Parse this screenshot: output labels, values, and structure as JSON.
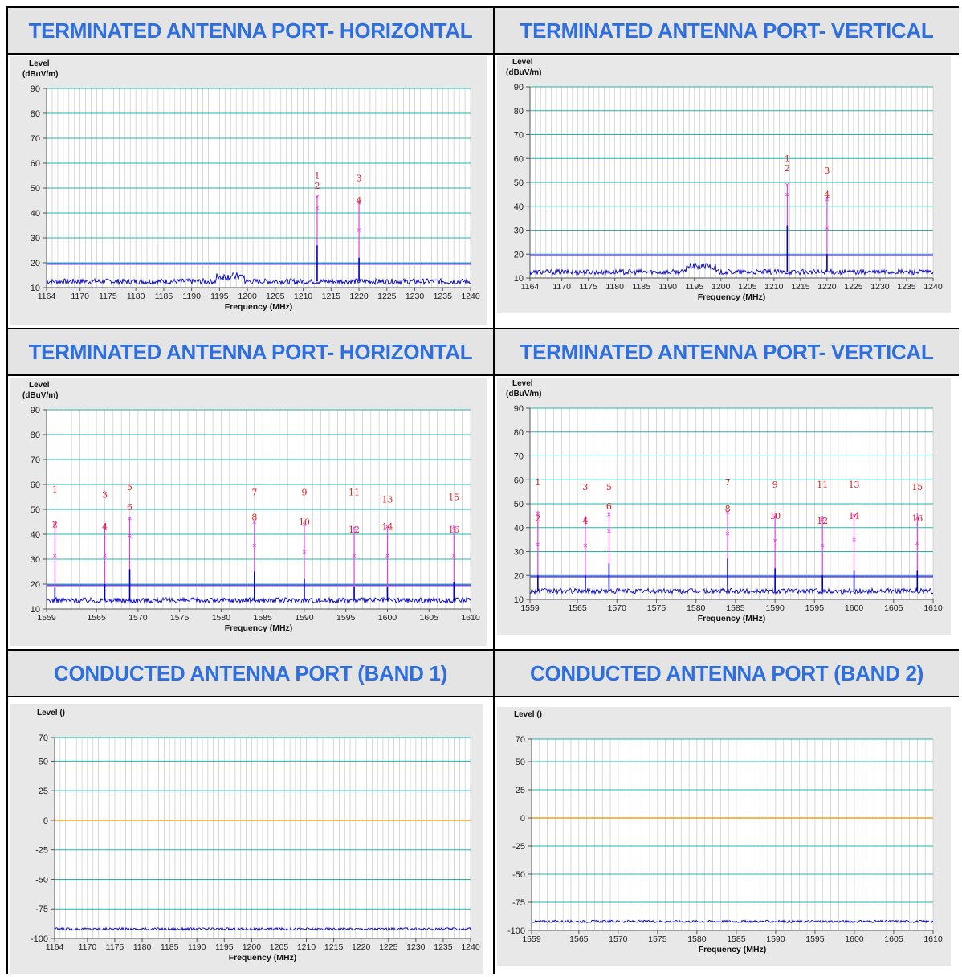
{
  "panels": [
    {
      "heading": "TERMINATED ANTENNA PORT- HORIZONTAL"
    },
    {
      "heading": "TERMINATED ANTENNA PORT- VERTICAL"
    },
    {
      "heading": "TERMINATED ANTENNA PORT- HORIZONTAL"
    },
    {
      "heading": "TERMINATED ANTENNA PORT- VERTICAL"
    },
    {
      "heading": "CONDUCTED ANTENNA PORT (BAND 1)"
    },
    {
      "heading": "CONDUCTED ANTENNA PORT (BAND 2)"
    }
  ],
  "colors": {
    "heading": "#2d6fe0",
    "grid": "#1cb8b0",
    "trace": "#0000c8",
    "limit": "#7a4cf0",
    "marker": "#e040e0",
    "marker_label": "#e02020",
    "zero_line": "#f0a020"
  },
  "chart_data": [
    {
      "type": "line",
      "title": "TERMINATED ANTENNA PORT- HORIZONTAL",
      "ylabel_line1": "Level",
      "ylabel_line2": "(dBuV/m)",
      "xlabel": "Frequency (MHz)",
      "xlim": [
        1164,
        1240
      ],
      "ylim": [
        10,
        90
      ],
      "xticks": [
        1164,
        1170,
        1175,
        1180,
        1185,
        1190,
        1195,
        1200,
        1205,
        1210,
        1215,
        1220,
        1225,
        1230,
        1235,
        1240
      ],
      "yticks": [
        10,
        20,
        30,
        40,
        50,
        60,
        70,
        80,
        90
      ],
      "limit_line": 19.5,
      "noise_floor": 12.5,
      "bumps": [
        {
          "x": [
            1194.5,
            1199.5
          ],
          "level": 14.5
        }
      ],
      "peaks": [
        {
          "x": 1212.5,
          "level": 27
        },
        {
          "x": 1220,
          "level": 22
        }
      ],
      "marker_stems": [
        {
          "x": 1212.5,
          "top": 47
        },
        {
          "x": 1220,
          "top": 45
        }
      ],
      "markers": [
        {
          "id": "1",
          "x": 1212.5,
          "value": 46.5,
          "label_y": 55
        },
        {
          "id": "2",
          "x": 1212.5,
          "value": 42,
          "label_y": 51
        },
        {
          "id": "3",
          "x": 1220,
          "value": 33,
          "label_y": 54
        },
        {
          "id": "4",
          "x": 1220,
          "value": 44.5,
          "label_y": 45
        }
      ]
    },
    {
      "type": "line",
      "title": "TERMINATED ANTENNA PORT- VERTICAL",
      "ylabel_line1": "Level",
      "ylabel_line2": "(dBuV/m)",
      "xlabel": "Frequency (MHz)",
      "xlim": [
        1164,
        1240
      ],
      "ylim": [
        10,
        90
      ],
      "xticks": [
        1164,
        1170,
        1175,
        1180,
        1185,
        1190,
        1195,
        1200,
        1205,
        1210,
        1215,
        1220,
        1225,
        1230,
        1235,
        1240
      ],
      "yticks": [
        10,
        20,
        30,
        40,
        50,
        60,
        70,
        80,
        90
      ],
      "limit_line": 19.5,
      "noise_floor": 12.5,
      "bumps": [
        {
          "x": [
            1193.5,
            1199
          ],
          "level": 15
        }
      ],
      "peaks": [
        {
          "x": 1212.5,
          "level": 32
        },
        {
          "x": 1220,
          "level": 20
        }
      ],
      "marker_stems": [
        {
          "x": 1212.5,
          "top": 49
        },
        {
          "x": 1220,
          "top": 44
        }
      ],
      "markers": [
        {
          "id": "1",
          "x": 1212.5,
          "value": 49,
          "label_y": 60
        },
        {
          "id": "2",
          "x": 1212.5,
          "value": 45,
          "label_y": 56
        },
        {
          "id": "3",
          "x": 1220,
          "value": 31,
          "label_y": 55
        },
        {
          "id": "4",
          "x": 1220,
          "value": 43,
          "label_y": 45
        }
      ]
    },
    {
      "type": "line",
      "title": "TERMINATED ANTENNA PORT- HORIZONTAL",
      "ylabel_line1": "Level",
      "ylabel_line2": "(dBuV/m)",
      "xlabel": "Frequency (MHz)",
      "xlim": [
        1559,
        1610
      ],
      "ylim": [
        10,
        90
      ],
      "xticks": [
        1559,
        1565,
        1570,
        1575,
        1580,
        1585,
        1590,
        1595,
        1600,
        1605,
        1610
      ],
      "yticks": [
        10,
        20,
        30,
        40,
        50,
        60,
        70,
        80,
        90
      ],
      "limit_line": 19.5,
      "noise_floor": 13.5,
      "bumps": [],
      "peaks": [
        {
          "x": 1560,
          "level": 19
        },
        {
          "x": 1566,
          "level": 20
        },
        {
          "x": 1569,
          "level": 26
        },
        {
          "x": 1584,
          "level": 25
        },
        {
          "x": 1590,
          "level": 22
        },
        {
          "x": 1596,
          "level": 19
        },
        {
          "x": 1600,
          "level": 19
        },
        {
          "x": 1608,
          "level": 21
        }
      ],
      "marker_stems": [
        {
          "x": 1560,
          "top": 45
        },
        {
          "x": 1566,
          "top": 44
        },
        {
          "x": 1569,
          "top": 47
        },
        {
          "x": 1584,
          "top": 45
        },
        {
          "x": 1590,
          "top": 44
        },
        {
          "x": 1596,
          "top": 43
        },
        {
          "x": 1600,
          "top": 43
        },
        {
          "x": 1608,
          "top": 43
        }
      ],
      "markers": [
        {
          "id": "1",
          "x": 1560,
          "value": 31.5,
          "label_y": 58
        },
        {
          "id": "2",
          "x": 1560,
          "value": 44.5,
          "label_y": 44
        },
        {
          "id": "3",
          "x": 1566,
          "value": 31.5,
          "label_y": 56
        },
        {
          "id": "4",
          "x": 1566,
          "value": 43,
          "label_y": 43
        },
        {
          "id": "5",
          "x": 1569,
          "value": 39.5,
          "label_y": 59
        },
        {
          "id": "6",
          "x": 1569,
          "value": 46.5,
          "label_y": 51
        },
        {
          "id": "7",
          "x": 1584,
          "value": 35.5,
          "label_y": 57
        },
        {
          "id": "8",
          "x": 1584,
          "value": 45,
          "label_y": 47
        },
        {
          "id": "9",
          "x": 1590,
          "value": 33,
          "label_y": 57
        },
        {
          "id": "10",
          "x": 1590,
          "value": 44,
          "label_y": 45
        },
        {
          "id": "11",
          "x": 1596,
          "value": 31.5,
          "label_y": 57
        },
        {
          "id": "12",
          "x": 1596,
          "value": 42.5,
          "label_y": 42
        },
        {
          "id": "13",
          "x": 1600,
          "value": 31.5,
          "label_y": 54
        },
        {
          "id": "14",
          "x": 1600,
          "value": 43,
          "label_y": 43
        },
        {
          "id": "15",
          "x": 1608,
          "value": 31.5,
          "label_y": 55
        },
        {
          "id": "16",
          "x": 1608,
          "value": 43,
          "label_y": 42
        }
      ]
    },
    {
      "type": "line",
      "title": "TERMINATED ANTENNA PORT- VERTICAL",
      "ylabel_line1": "Level",
      "ylabel_line2": "(dBuV/m)",
      "xlabel": "Frequency (MHz)",
      "xlim": [
        1559,
        1610
      ],
      "ylim": [
        10,
        90
      ],
      "xticks": [
        1559,
        1565,
        1570,
        1575,
        1580,
        1585,
        1590,
        1595,
        1600,
        1605,
        1610
      ],
      "yticks": [
        10,
        20,
        30,
        40,
        50,
        60,
        70,
        80,
        90
      ],
      "limit_line": 19.5,
      "noise_floor": 13.5,
      "bumps": [],
      "peaks": [
        {
          "x": 1560,
          "level": 20
        },
        {
          "x": 1566,
          "level": 20
        },
        {
          "x": 1569,
          "level": 25
        },
        {
          "x": 1584,
          "level": 27
        },
        {
          "x": 1590,
          "level": 23
        },
        {
          "x": 1596,
          "level": 20
        },
        {
          "x": 1600,
          "level": 22
        },
        {
          "x": 1608,
          "level": 22
        }
      ],
      "marker_stems": [
        {
          "x": 1560,
          "top": 47
        },
        {
          "x": 1566,
          "top": 45
        },
        {
          "x": 1569,
          "top": 47
        },
        {
          "x": 1584,
          "top": 47
        },
        {
          "x": 1590,
          "top": 46
        },
        {
          "x": 1596,
          "top": 45
        },
        {
          "x": 1600,
          "top": 46
        },
        {
          "x": 1608,
          "top": 46
        }
      ],
      "markers": [
        {
          "id": "1",
          "x": 1560,
          "value": 33,
          "label_y": 59
        },
        {
          "id": "2",
          "x": 1560,
          "value": 46,
          "label_y": 44
        },
        {
          "id": "3",
          "x": 1566,
          "value": 32.5,
          "label_y": 57
        },
        {
          "id": "4",
          "x": 1566,
          "value": 43.5,
          "label_y": 43
        },
        {
          "id": "5",
          "x": 1569,
          "value": 38.5,
          "label_y": 57
        },
        {
          "id": "6",
          "x": 1569,
          "value": 45.5,
          "label_y": 49
        },
        {
          "id": "7",
          "x": 1584,
          "value": 37.5,
          "label_y": 59
        },
        {
          "id": "8",
          "x": 1584,
          "value": 46.5,
          "label_y": 48
        },
        {
          "id": "9",
          "x": 1590,
          "value": 34.5,
          "label_y": 58
        },
        {
          "id": "10",
          "x": 1590,
          "value": 44.5,
          "label_y": 45
        },
        {
          "id": "11",
          "x": 1596,
          "value": 32.5,
          "label_y": 58
        },
        {
          "id": "12",
          "x": 1596,
          "value": 43.5,
          "label_y": 43
        },
        {
          "id": "13",
          "x": 1600,
          "value": 35,
          "label_y": 58
        },
        {
          "id": "14",
          "x": 1600,
          "value": 45,
          "label_y": 45
        },
        {
          "id": "15",
          "x": 1608,
          "value": 33.5,
          "label_y": 57
        },
        {
          "id": "16",
          "x": 1608,
          "value": 44,
          "label_y": 44
        }
      ]
    },
    {
      "type": "line",
      "title": "CONDUCTED ANTENNA PORT (BAND 1)",
      "ylabel_line1": "Level ()",
      "ylabel_line2": "",
      "xlabel": "Frequency (MHz)",
      "xlim": [
        1164,
        1240
      ],
      "ylim": [
        -100,
        70
      ],
      "xticks": [
        1164,
        1170,
        1175,
        1180,
        1185,
        1190,
        1195,
        1200,
        1205,
        1210,
        1215,
        1220,
        1225,
        1230,
        1235,
        1240
      ],
      "yticks": [
        -100,
        -75,
        -50,
        -25,
        0,
        25,
        50,
        70
      ],
      "zero_line": 0,
      "noise_floor": -92,
      "bumps": [],
      "peaks": [],
      "marker_stems": [],
      "markers": []
    },
    {
      "type": "line",
      "title": "CONDUCTED ANTENNA PORT (BAND 2)",
      "ylabel_line1": "Level ()",
      "ylabel_line2": "",
      "xlabel": "Frequency (MHz)",
      "xlim": [
        1559,
        1610
      ],
      "ylim": [
        -100,
        70
      ],
      "xticks": [
        1559,
        1565,
        1570,
        1575,
        1580,
        1585,
        1590,
        1595,
        1600,
        1605,
        1610
      ],
      "yticks": [
        -100,
        -75,
        -50,
        -25,
        0,
        25,
        50,
        70
      ],
      "zero_line": 0,
      "noise_floor": -92,
      "bumps": [],
      "peaks": [],
      "marker_stems": [],
      "markers": []
    }
  ]
}
